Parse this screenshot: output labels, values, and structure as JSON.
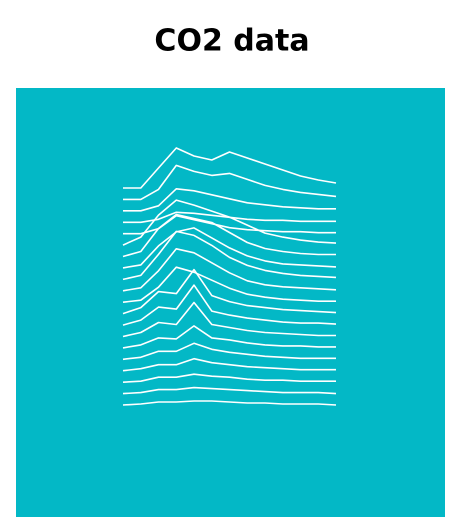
{
  "chart_data": {
    "type": "ridgeline",
    "title": "CO2 data",
    "background": "#03b8c6",
    "color": "#ffffff",
    "x": [
      0,
      1,
      2,
      3,
      4,
      5,
      6,
      7,
      8,
      9,
      10,
      11,
      12
    ],
    "series": [
      {
        "values": [
          0,
          0,
          20,
          40,
          32,
          28,
          36,
          30,
          24,
          18,
          12,
          8,
          5
        ]
      },
      {
        "values": [
          0,
          0,
          10,
          34,
          28,
          24,
          26,
          20,
          14,
          10,
          7,
          5,
          3
        ]
      },
      {
        "values": [
          0,
          0,
          5,
          22,
          20,
          16,
          12,
          8,
          6,
          4,
          3,
          2,
          2
        ]
      },
      {
        "values": [
          0,
          0,
          3,
          10,
          9,
          7,
          5,
          3,
          2,
          2,
          1,
          1,
          1
        ]
      },
      {
        "values": [
          0,
          0,
          5,
          18,
          14,
          10,
          6,
          4,
          3,
          2,
          2,
          1,
          1
        ]
      },
      {
        "values": [
          0,
          8,
          30,
          45,
          40,
          34,
          28,
          20,
          12,
          8,
          5,
          3,
          2
        ]
      },
      {
        "values": [
          0,
          5,
          28,
          42,
          38,
          34,
          24,
          14,
          8,
          5,
          3,
          2,
          2
        ]
      },
      {
        "values": [
          0,
          3,
          22,
          36,
          40,
          30,
          20,
          12,
          7,
          4,
          3,
          2,
          1
        ]
      },
      {
        "values": [
          0,
          4,
          25,
          48,
          44,
          34,
          22,
          14,
          9,
          6,
          4,
          3,
          2
        ]
      },
      {
        "values": [
          0,
          3,
          20,
          42,
          38,
          28,
          18,
          10,
          6,
          4,
          3,
          2,
          1
        ]
      },
      {
        "values": [
          0,
          2,
          15,
          35,
          30,
          22,
          14,
          8,
          5,
          3,
          2,
          1,
          1
        ]
      },
      {
        "values": [
          0,
          6,
          22,
          20,
          44,
          18,
          12,
          8,
          6,
          4,
          3,
          2,
          1
        ]
      },
      {
        "values": [
          0,
          5,
          18,
          16,
          40,
          14,
          10,
          7,
          5,
          3,
          2,
          2,
          1
        ]
      },
      {
        "values": [
          0,
          4,
          14,
          12,
          34,
          12,
          9,
          6,
          4,
          3,
          2,
          1,
          1
        ]
      },
      {
        "values": [
          0,
          3,
          10,
          9,
          22,
          10,
          8,
          5,
          3,
          2,
          2,
          1,
          1
        ]
      },
      {
        "values": [
          0,
          2,
          8,
          8,
          16,
          10,
          7,
          5,
          3,
          2,
          1,
          1,
          1
        ]
      },
      {
        "values": [
          0,
          2,
          6,
          6,
          12,
          8,
          6,
          4,
          3,
          2,
          1,
          1,
          1
        ]
      },
      {
        "values": [
          0,
          1,
          5,
          5,
          8,
          6,
          5,
          3,
          2,
          2,
          1,
          1,
          1
        ]
      },
      {
        "values": [
          0,
          1,
          4,
          4,
          6,
          5,
          4,
          3,
          2,
          1,
          1,
          1,
          0
        ]
      },
      {
        "values": [
          0,
          1,
          3,
          3,
          4,
          4,
          3,
          2,
          2,
          1,
          1,
          1,
          0
        ]
      }
    ]
  }
}
